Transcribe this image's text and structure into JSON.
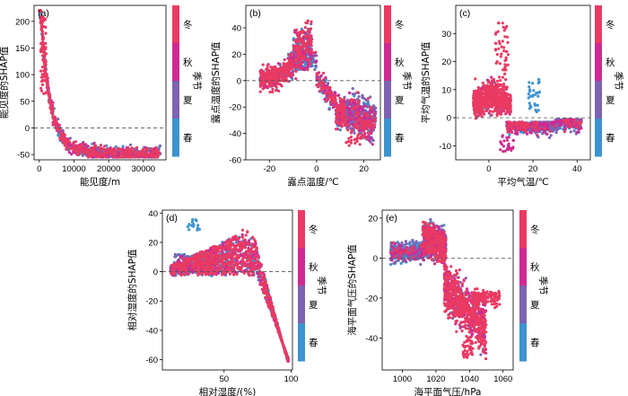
{
  "colors": {
    "winter": "#ea3a62",
    "autumn": "#cf2a92",
    "summer": "#7d63b1",
    "spring": "#3c93cf"
  },
  "chart_data": [
    {
      "id": "a",
      "panel_label": "(a)",
      "type": "scatter",
      "xlabel": "能见度/m",
      "ylabel": "能见度的SHAP值",
      "xlim": [
        -1500,
        36500
      ],
      "ylim": [
        -60,
        230
      ],
      "xticks": [
        0,
        10000,
        20000,
        30000
      ],
      "yticks": [
        -50,
        0,
        50,
        100,
        150,
        200
      ],
      "colorbar": {
        "labels": [
          "冬",
          "秋",
          "夏",
          "春"
        ],
        "title": "季节"
      }
    },
    {
      "id": "b",
      "panel_label": "(b)",
      "type": "scatter",
      "xlabel": "露点温度/℃",
      "ylabel": "露点温度的SHAP值",
      "xlim": [
        -30,
        27
      ],
      "ylim": [
        -60,
        57
      ],
      "xticks": [
        -20,
        0,
        20
      ],
      "yticks": [
        -60,
        -40,
        -20,
        0,
        20,
        40
      ],
      "colorbar": {
        "labels": [
          "冬",
          "秋",
          "夏",
          "春"
        ],
        "title": "季节"
      }
    },
    {
      "id": "c",
      "panel_label": "(c)",
      "type": "scatter",
      "xlabel": "平均气温/℃",
      "ylabel": "平均气温的SHAP值",
      "xlim": [
        -15,
        46
      ],
      "ylim": [
        -15,
        40
      ],
      "xticks": [
        0,
        20,
        40
      ],
      "yticks": [
        -10,
        0,
        10,
        20,
        30
      ],
      "colorbar": {
        "labels": [
          "冬",
          "秋",
          "夏",
          "春"
        ],
        "title": "季节"
      }
    },
    {
      "id": "d",
      "panel_label": "(d)",
      "type": "scatter",
      "xlabel": "相对湿度/(%)",
      "ylabel": "相对湿度的SHAP值",
      "xlim": [
        4,
        101
      ],
      "ylim": [
        -67,
        42
      ],
      "xticks": [
        50,
        100
      ],
      "yticks": [
        -60,
        -40,
        -20,
        0,
        20,
        40
      ],
      "colorbar": {
        "labels": [
          "冬",
          "秋",
          "夏",
          "春"
        ],
        "title": "季节"
      }
    },
    {
      "id": "e",
      "panel_label": "(e)",
      "type": "scatter",
      "xlabel": "海平面气压/hPa",
      "ylabel": "海平面气压的SHAP值",
      "xlim": [
        988,
        1066
      ],
      "ylim": [
        -56,
        24
      ],
      "xticks": [
        1000,
        1020,
        1040,
        1060
      ],
      "yticks": [
        -40,
        -20,
        0,
        20
      ],
      "colorbar": {
        "labels": [
          "冬",
          "秋",
          "夏",
          "春"
        ],
        "title": "季节"
      }
    }
  ]
}
